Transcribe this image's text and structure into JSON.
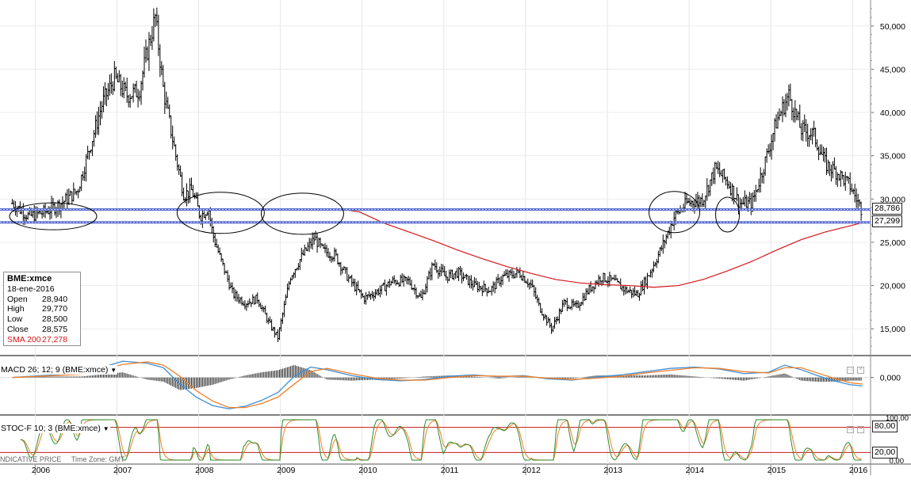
{
  "chart_data": {
    "type": "line",
    "symbol": "BME:xmce",
    "price_axis": {
      "ylim": [
        12000,
        53000
      ],
      "ticks": [
        "50,000",
        "45,000",
        "40,000",
        "35,000",
        "30,000",
        "25,000",
        "20,000",
        "15,000"
      ],
      "tick_values": [
        50000,
        45000,
        40000,
        35000,
        30000,
        25000,
        20000,
        15000
      ]
    },
    "x_axis": {
      "xlim": [
        2005.5,
        2016.15
      ],
      "labels": [
        "2006",
        "2007",
        "2008",
        "2009",
        "2010",
        "2011",
        "2012",
        "2013",
        "2014",
        "2015",
        "2016"
      ],
      "label_positions": [
        2006,
        2007,
        2008,
        2009,
        2010,
        2011,
        2012,
        2013,
        2014,
        2015,
        2016
      ],
      "year_boundaries": [
        2005.93,
        2006.93,
        2007.93,
        2008.93,
        2009.93,
        2010.93,
        2011.93,
        2012.93,
        2013.93,
        2014.93,
        2015.93
      ]
    },
    "price_series": {
      "name": "BME:xmce",
      "x": [
        2005.65,
        2005.85,
        2006.05,
        2006.25,
        2006.45,
        2006.6,
        2006.75,
        2006.9,
        2007.05,
        2007.2,
        2007.3,
        2007.4,
        2007.5,
        2007.65,
        2007.75,
        2007.85,
        2007.95,
        2008.05,
        2008.1,
        2008.2,
        2008.35,
        2008.5,
        2008.65,
        2008.8,
        2008.9,
        2009.05,
        2009.2,
        2009.35,
        2009.45,
        2009.6,
        2009.75,
        2009.95,
        2010.15,
        2010.3,
        2010.5,
        2010.65,
        2010.8,
        2010.95,
        2011.1,
        2011.3,
        2011.5,
        2011.65,
        2011.85,
        2012.0,
        2012.1,
        2012.25,
        2012.4,
        2012.55,
        2012.7,
        2012.85,
        2013.0,
        2013.15,
        2013.3,
        2013.45,
        2013.6,
        2013.75,
        2013.9,
        2014.1,
        2014.25,
        2014.4,
        2014.55,
        2014.7,
        2014.85,
        2015.0,
        2015.15,
        2015.3,
        2015.45,
        2015.6,
        2015.75,
        2015.9,
        2016.05
      ],
      "close": [
        29500,
        28000,
        28500,
        29500,
        31000,
        36000,
        41000,
        44000,
        42000,
        42500,
        47000,
        51000,
        42500,
        35000,
        30500,
        31000,
        28000,
        29000,
        26000,
        23000,
        19000,
        18000,
        18500,
        15500,
        14000,
        21000,
        23500,
        25500,
        24000,
        23500,
        21000,
        18500,
        19500,
        20500,
        20500,
        18500,
        22500,
        21000,
        21500,
        20000,
        19500,
        21000,
        21500,
        20000,
        17500,
        15000,
        18000,
        17500,
        19500,
        21000,
        20500,
        19500,
        19000,
        21500,
        24500,
        28000,
        29500,
        30000,
        33500,
        32000,
        29500,
        29500,
        34000,
        39000,
        42000,
        38000,
        37500,
        34000,
        33000,
        31500,
        28575
      ]
    },
    "sma_series": {
      "name": "SMA 200",
      "color": "#d4161b",
      "x": [
        2009.7,
        2009.9,
        2010.2,
        2010.5,
        2010.8,
        2011.1,
        2011.4,
        2011.7,
        2012.0,
        2012.3,
        2012.6,
        2012.9,
        2013.2,
        2013.5,
        2013.8,
        2014.1,
        2014.4,
        2014.7,
        2015.0,
        2015.3,
        2015.6,
        2015.9,
        2016.05
      ],
      "values": [
        28800,
        28500,
        27200,
        26200,
        25200,
        24100,
        23100,
        22200,
        21400,
        20700,
        20300,
        20100,
        20000,
        19800,
        20000,
        20700,
        21700,
        22800,
        24100,
        25300,
        26200,
        26900,
        27278
      ]
    },
    "support_lines": [
      {
        "value": 28786,
        "label": "28,786"
      },
      {
        "value": 27299,
        "label": "27,299"
      }
    ],
    "annotations": [
      {
        "type": "ellipse",
        "cx": 2006.15,
        "cy": 28000
      },
      {
        "type": "ellipse",
        "cx": 2008.2,
        "cy": 28400
      },
      {
        "type": "ellipse",
        "cx": 2009.2,
        "cy": 28300
      },
      {
        "type": "ellipse",
        "cx": 2013.75,
        "cy": 28500
      },
      {
        "type": "ellipse",
        "cx": 2014.4,
        "cy": 28200
      }
    ],
    "macd": {
      "label": "MACD 26; 12; 9 (BME:xmce)",
      "tick": "0,000",
      "x": [
        2005.65,
        2006.0,
        2006.5,
        2007.0,
        2007.3,
        2007.5,
        2007.7,
        2007.9,
        2008.1,
        2008.3,
        2008.5,
        2008.7,
        2008.9,
        2009.1,
        2009.3,
        2009.5,
        2009.8,
        2010.1,
        2010.4,
        2010.7,
        2011.0,
        2011.3,
        2011.6,
        2011.9,
        2012.2,
        2012.5,
        2012.8,
        2013.1,
        2013.4,
        2013.7,
        2014.0,
        2014.3,
        2014.6,
        2014.9,
        2015.1,
        2015.3,
        2015.5,
        2015.7,
        2015.9,
        2016.05
      ],
      "macd": [
        0,
        0.3,
        0.6,
        2.5,
        2.2,
        1.5,
        -1,
        -3,
        -4.3,
        -4.8,
        -4.4,
        -3.5,
        -2.3,
        0.2,
        1.6,
        1.2,
        0.3,
        -0.3,
        -0.5,
        -0.3,
        0.2,
        0.4,
        0.1,
        0.3,
        -0.2,
        -0.4,
        0.1,
        0.4,
        0.9,
        1.4,
        1.6,
        1.3,
        0.6,
        0.8,
        1.9,
        1.2,
        0.3,
        -0.5,
        -1.1,
        -1.3
      ],
      "signal": [
        0,
        0.2,
        0.5,
        2.0,
        2.4,
        1.9,
        0.2,
        -2,
        -3.6,
        -4.6,
        -4.6,
        -4.0,
        -3.0,
        -1,
        0.9,
        1.4,
        0.6,
        -0.1,
        -0.4,
        -0.4,
        0.0,
        0.3,
        0.2,
        0.2,
        -0.1,
        -0.3,
        -0.1,
        0.2,
        0.7,
        1.1,
        1.5,
        1.4,
        0.9,
        0.7,
        1.5,
        1.5,
        0.7,
        -0.1,
        -0.8,
        -1.0
      ],
      "ylim": [
        -5.5,
        3.0
      ]
    },
    "stoch": {
      "label": "STOC-F 10; 3 (BME:xmce)",
      "ylim": [
        0,
        100
      ],
      "upper": {
        "value": 80,
        "label": "80,00"
      },
      "lower": {
        "value": 20,
        "label": "20,00"
      },
      "top_tick": "100,00",
      "bottom_tick": "0,00"
    }
  },
  "info_box": {
    "symbol": "BME:xmce",
    "date": "18-ene-2016",
    "rows": [
      {
        "key": "Open",
        "value": "28,940"
      },
      {
        "key": "High",
        "value": "29,770"
      },
      {
        "key": "Low",
        "value": "28,500"
      },
      {
        "key": "Close",
        "value": "28,575"
      }
    ],
    "sma": {
      "key": "SMA 200",
      "value": "27,278"
    }
  },
  "footer": {
    "price_label": "NDICATIVE PRICE",
    "timezone": "Time Zone: GMT"
  },
  "colors": {
    "price": "#000000",
    "sma": "#d4161b",
    "support": "#5b6fd0",
    "macd": "#3d8fd8",
    "signal": "#f07f2a",
    "stoch_k": "#2e8b2e",
    "stoch_d": "#f07f2a",
    "stoch_ref": "#c4161b"
  }
}
